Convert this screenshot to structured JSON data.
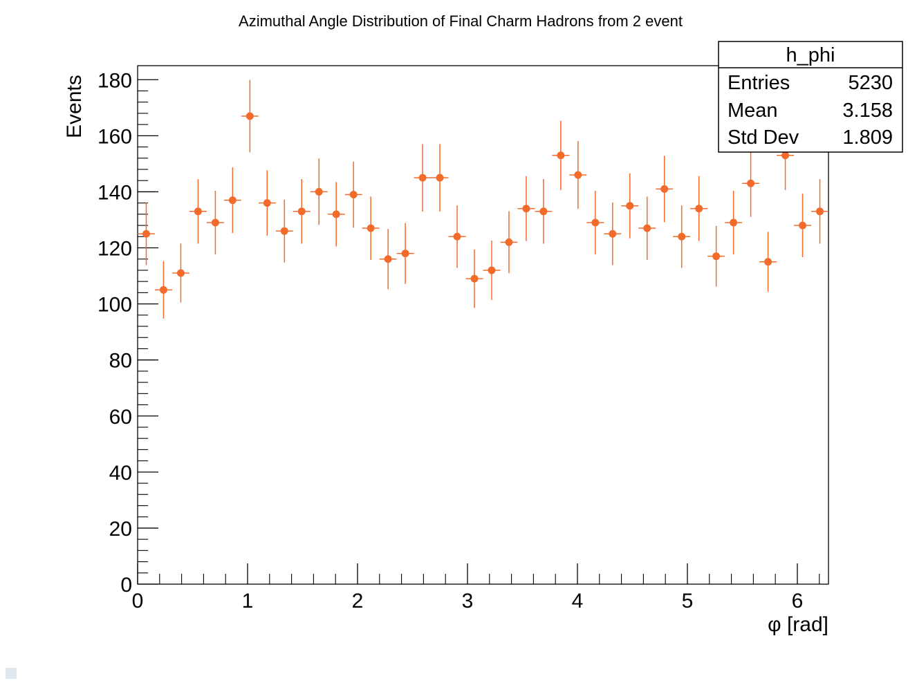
{
  "chart_data": {
    "type": "scatter",
    "title": "Azimuthal Angle Distribution of Final Charm Hadrons from 2 event",
    "xlabel": "φ [rad]",
    "ylabel": "Events",
    "xlim": [
      0,
      6.2832
    ],
    "ylim": [
      0,
      185
    ],
    "x_ticks": [
      "0",
      "1",
      "2",
      "3",
      "4",
      "5",
      "6"
    ],
    "y_ticks": [
      "0",
      "20",
      "40",
      "60",
      "80",
      "100",
      "120",
      "140",
      "160",
      "180"
    ],
    "bin_width": 0.157,
    "x": [
      0.0785,
      0.2356,
      0.3927,
      0.5498,
      0.7069,
      0.8639,
      1.021,
      1.1781,
      1.3352,
      1.4923,
      1.6493,
      1.8064,
      1.9635,
      2.1206,
      2.2777,
      2.4347,
      2.5918,
      2.7489,
      2.906,
      3.0631,
      3.2201,
      3.3772,
      3.5343,
      3.6914,
      3.8485,
      4.0055,
      4.1626,
      4.3197,
      4.4768,
      4.6339,
      4.7909,
      4.948,
      5.1051,
      5.2622,
      5.4193,
      5.5763,
      5.7334,
      5.8905,
      6.0476,
      6.2047
    ],
    "values": [
      125,
      105,
      111,
      133,
      129,
      137,
      167,
      136,
      126,
      133,
      140,
      132,
      139,
      127,
      116,
      118,
      145,
      145,
      124,
      109,
      112,
      122,
      134,
      133,
      153,
      146,
      129,
      125,
      135,
      127,
      141,
      124,
      134,
      117,
      129,
      143,
      115,
      153,
      128,
      133
    ],
    "marker_color": "#f26b2a",
    "grid": false,
    "legend": "none",
    "stats_box": {
      "title": "h_phi",
      "rows": [
        {
          "label": "Entries",
          "value": "5230"
        },
        {
          "label": "Mean",
          "value": "3.158"
        },
        {
          "label": "Std Dev",
          "value": "1.809"
        }
      ]
    }
  }
}
